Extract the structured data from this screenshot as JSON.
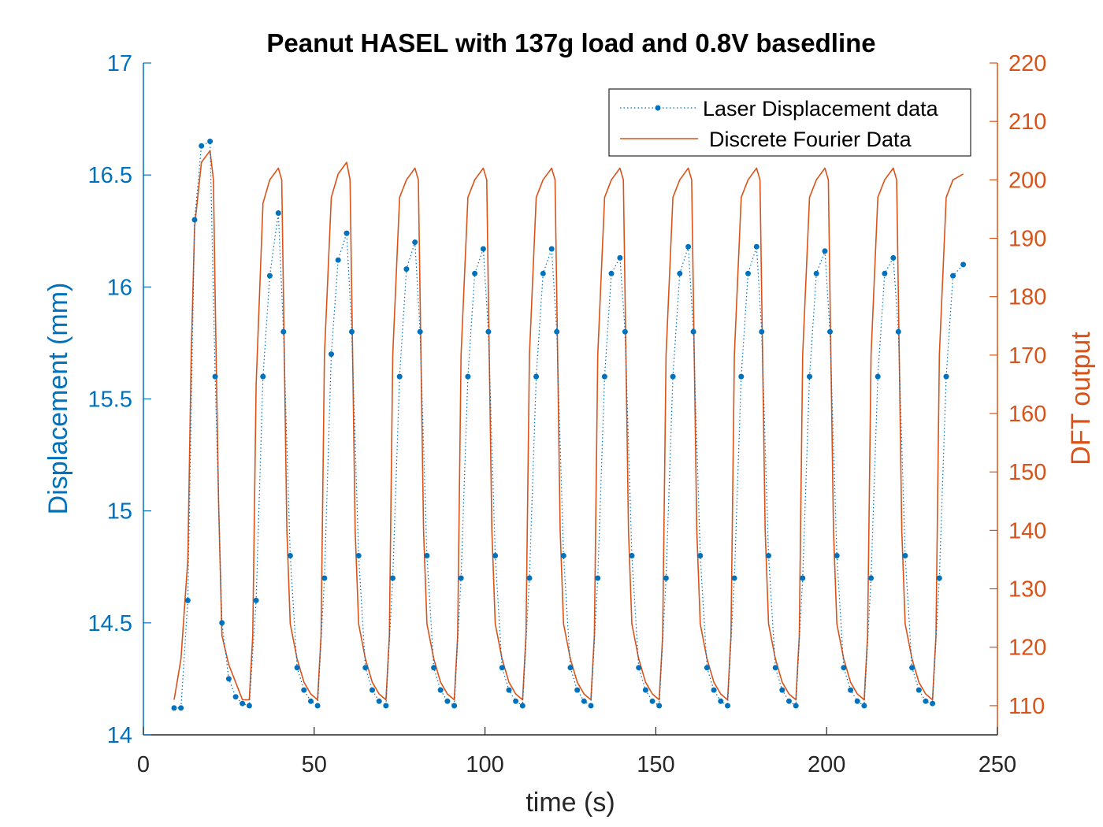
{
  "chart_data": {
    "type": "line",
    "title": "Peanut HASEL with 137g load and 0.8V basedline",
    "xlabel": "time (s)",
    "ylabel_left": "Displacement (mm)",
    "ylabel_right": "DFT output",
    "xlim": [
      0,
      250
    ],
    "ylim_left": [
      14,
      17
    ],
    "ylim_right": [
      105,
      220
    ],
    "xticks": [
      "0",
      "50",
      "100",
      "150",
      "200",
      "250"
    ],
    "yticks_left": [
      "14",
      "14.5",
      "15",
      "15.5",
      "16",
      "16.5",
      "17"
    ],
    "yticks_right": [
      "110",
      "120",
      "130",
      "140",
      "150",
      "160",
      "170",
      "180",
      "190",
      "200",
      "210",
      "220"
    ],
    "grid": false,
    "legend_position": "top-right",
    "colors": {
      "displacement": "#0072BD",
      "dft": "#D95319",
      "axis": "#262626"
    },
    "series": [
      {
        "name": "Laser Displacement data",
        "axis": "left",
        "style": "dotted-line-with-markers",
        "x": [
          9,
          11,
          13,
          15,
          17,
          19.5,
          21,
          23,
          25,
          27,
          29,
          31,
          33,
          35,
          37,
          39.5,
          41,
          43,
          45,
          47,
          49,
          51,
          53,
          55,
          57,
          59.5,
          61,
          63,
          65,
          67,
          69,
          71,
          73,
          75,
          77,
          79.5,
          81,
          83,
          85,
          87,
          89,
          91,
          93,
          95,
          97,
          99.5,
          101,
          103,
          105,
          107,
          109,
          111,
          113,
          115,
          117,
          119.5,
          121,
          123,
          125,
          127,
          129,
          131,
          133,
          135,
          137,
          139.5,
          141,
          143,
          145,
          147,
          149,
          151,
          153,
          155,
          157,
          159.5,
          161,
          163,
          165,
          167,
          169,
          171,
          173,
          175,
          177,
          179.5,
          181,
          183,
          185,
          187,
          189,
          191,
          193,
          195,
          197,
          199.5,
          201,
          203,
          205,
          207,
          209,
          211,
          213,
          215,
          217,
          219.5,
          221,
          223,
          225,
          227,
          229,
          231,
          233,
          235,
          237,
          240
        ],
        "y": [
          14.12,
          14.12,
          14.6,
          16.3,
          16.63,
          16.65,
          15.6,
          14.5,
          14.25,
          14.17,
          14.14,
          14.13,
          14.6,
          15.6,
          16.05,
          16.33,
          15.8,
          14.8,
          14.3,
          14.2,
          14.15,
          14.13,
          14.7,
          15.7,
          16.12,
          16.24,
          15.8,
          14.8,
          14.3,
          14.2,
          14.15,
          14.13,
          14.7,
          15.6,
          16.08,
          16.2,
          15.8,
          14.8,
          14.3,
          14.2,
          14.15,
          14.13,
          14.7,
          15.6,
          16.06,
          16.17,
          15.8,
          14.8,
          14.3,
          14.2,
          14.15,
          14.13,
          14.7,
          15.6,
          16.06,
          16.17,
          15.8,
          14.8,
          14.3,
          14.2,
          14.15,
          14.13,
          14.7,
          15.6,
          16.06,
          16.13,
          15.8,
          14.8,
          14.3,
          14.2,
          14.15,
          14.13,
          14.7,
          15.6,
          16.06,
          16.18,
          15.8,
          14.8,
          14.3,
          14.2,
          14.15,
          14.13,
          14.7,
          15.6,
          16.06,
          16.18,
          15.8,
          14.8,
          14.3,
          14.2,
          14.15,
          14.13,
          14.7,
          15.6,
          16.06,
          16.16,
          15.8,
          14.8,
          14.3,
          14.2,
          14.15,
          14.13,
          14.7,
          15.6,
          16.06,
          16.13,
          15.8,
          14.8,
          14.3,
          14.2,
          14.15,
          14.14,
          14.7,
          15.6,
          16.05,
          16.1
        ]
      },
      {
        "name": "Discrete Fourier Data",
        "axis": "right",
        "style": "line",
        "x": [
          9,
          11,
          13,
          14,
          15,
          17,
          19.5,
          20.5,
          21,
          22,
          23,
          25,
          27,
          29,
          31,
          32,
          33,
          35,
          37,
          39.5,
          40.5,
          41,
          42,
          43,
          45,
          47,
          49,
          51,
          52,
          53,
          55,
          57,
          59.5,
          60.5,
          61,
          62,
          63,
          65,
          67,
          69,
          71,
          72,
          73,
          75,
          77,
          79.5,
          80.5,
          81,
          82,
          83,
          85,
          87,
          89,
          91,
          92,
          93,
          95,
          97,
          99.5,
          100.5,
          101,
          102,
          103,
          105,
          107,
          109,
          111,
          112,
          113,
          115,
          117,
          119.5,
          120.5,
          121,
          122,
          123,
          125,
          127,
          129,
          131,
          132,
          133,
          135,
          137,
          139.5,
          140.5,
          141,
          142,
          143,
          145,
          147,
          149,
          151,
          152,
          153,
          155,
          157,
          159.5,
          160.5,
          161,
          162,
          163,
          165,
          167,
          169,
          171,
          172,
          173,
          175,
          177,
          179.5,
          180.5,
          181,
          182,
          183,
          185,
          187,
          189,
          191,
          192,
          193,
          195,
          197,
          199.5,
          200.5,
          201,
          202,
          203,
          205,
          207,
          209,
          211,
          212,
          213,
          215,
          217,
          219.5,
          220.5,
          221,
          222,
          223,
          225,
          227,
          229,
          231,
          232,
          233,
          235,
          237,
          240
        ],
        "y": [
          111,
          118,
          135,
          170,
          192,
          203,
          205,
          200,
          180,
          145,
          122,
          117,
          114,
          111,
          111,
          122,
          165,
          196,
          200,
          202,
          200,
          180,
          140,
          124,
          118,
          114,
          112,
          111,
          122,
          170,
          197,
          201,
          203,
          200,
          180,
          140,
          124,
          118,
          114,
          112,
          111,
          122,
          170,
          197,
          200,
          202,
          200,
          180,
          140,
          124,
          118,
          114,
          112,
          111,
          122,
          170,
          197,
          200,
          202,
          200,
          180,
          140,
          124,
          118,
          114,
          112,
          111,
          122,
          170,
          197,
          200,
          202,
          200,
          180,
          140,
          124,
          118,
          114,
          112,
          111,
          122,
          170,
          197,
          200,
          202,
          200,
          180,
          140,
          124,
          118,
          114,
          112,
          111,
          122,
          170,
          197,
          200,
          202,
          200,
          180,
          140,
          124,
          118,
          114,
          112,
          111,
          122,
          170,
          197,
          200,
          202,
          200,
          180,
          140,
          124,
          118,
          114,
          112,
          111,
          122,
          170,
          197,
          200,
          202,
          200,
          180,
          140,
          124,
          118,
          114,
          112,
          111,
          122,
          170,
          197,
          200,
          202,
          200,
          180,
          140,
          124,
          118,
          114,
          112,
          111,
          122,
          170,
          197,
          200,
          201
        ]
      }
    ]
  }
}
